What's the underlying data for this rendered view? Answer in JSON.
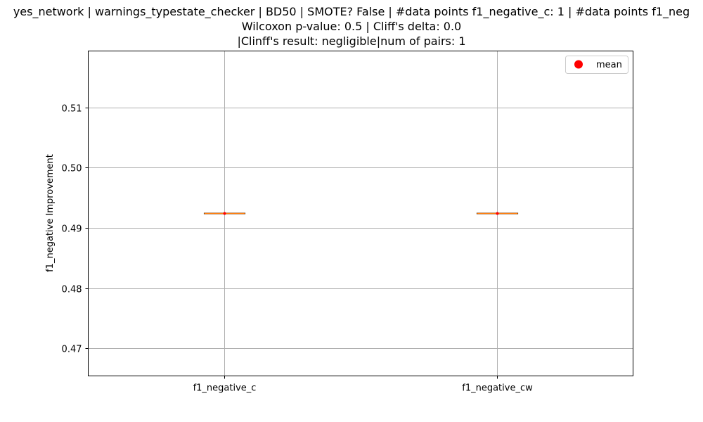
{
  "chart_data": {
    "type": "box",
    "title_lines": [
      "yes_network | warnings_typestate_checker | BD50 | SMOTE? False | #data points f1_negative_c: 1 | #data points f1_neg",
      "Wilcoxon p-value: 0.5 | Cliff's delta: 0.0",
      "|Clinff's result: negligible|num of pairs: 1"
    ],
    "xlabel": "",
    "ylabel": "f1_negative Improvement",
    "categories": [
      "f1_negative_c",
      "f1_negative_cw"
    ],
    "values": [
      0.4924,
      0.4924
    ],
    "means": [
      0.4924,
      0.4924
    ],
    "ylim": [
      0.4654,
      0.5194
    ],
    "yticks": [
      0.47,
      0.48,
      0.49,
      0.5,
      0.51
    ],
    "ytick_labels": [
      "0.47",
      "0.48",
      "0.49",
      "0.50",
      "0.51"
    ],
    "grid": true,
    "legend": {
      "placement": "top-right",
      "entries": [
        "mean"
      ]
    },
    "colors": {
      "median": "#ff7f0e",
      "mean_marker": "#ff0000",
      "grid": "#b0b0b0",
      "box": "#000000"
    }
  }
}
